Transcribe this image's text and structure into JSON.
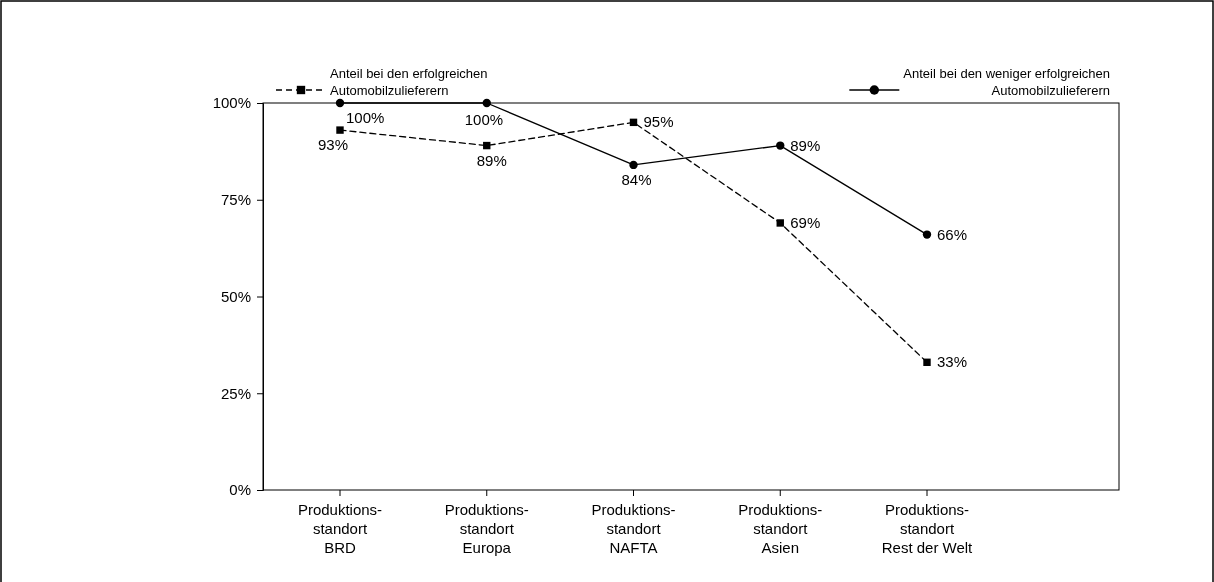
{
  "chart_data": {
    "type": "line",
    "categories": [
      "Produktions-\nstandort\nBRD",
      "Produktions-\nstandort\nEuropa",
      "Produktions-\nstandort\nNAFTA",
      "Produktions-\nstandort\nAsien",
      "Produktions-\nstandort\nRest der Welt"
    ],
    "ylim": [
      0,
      100
    ],
    "yticks": [
      {
        "value": 0,
        "label": "0%"
      },
      {
        "value": 25,
        "label": "25%"
      },
      {
        "value": 50,
        "label": "50%"
      },
      {
        "value": 75,
        "label": "75%"
      },
      {
        "value": 100,
        "label": "100%"
      }
    ],
    "grid": false,
    "legend": "top",
    "series": [
      {
        "name": "Anteil bei den erfolgreichen Automobilzulieferern",
        "color": "#000000",
        "marker": "square",
        "line_style": "dashed",
        "values": [
          93,
          89,
          95,
          69,
          33
        ],
        "value_labels": [
          "93%",
          "89%",
          "95%",
          "69%",
          "33%"
        ]
      },
      {
        "name": "Anteil bei den weniger erfolgreichen Automobilzulieferern",
        "color": "#000000",
        "marker": "circle",
        "line_style": "solid",
        "values": [
          100,
          100,
          84,
          89,
          66
        ],
        "value_labels": [
          "100%",
          "100%",
          "84%",
          "89%",
          "66%"
        ]
      }
    ]
  }
}
